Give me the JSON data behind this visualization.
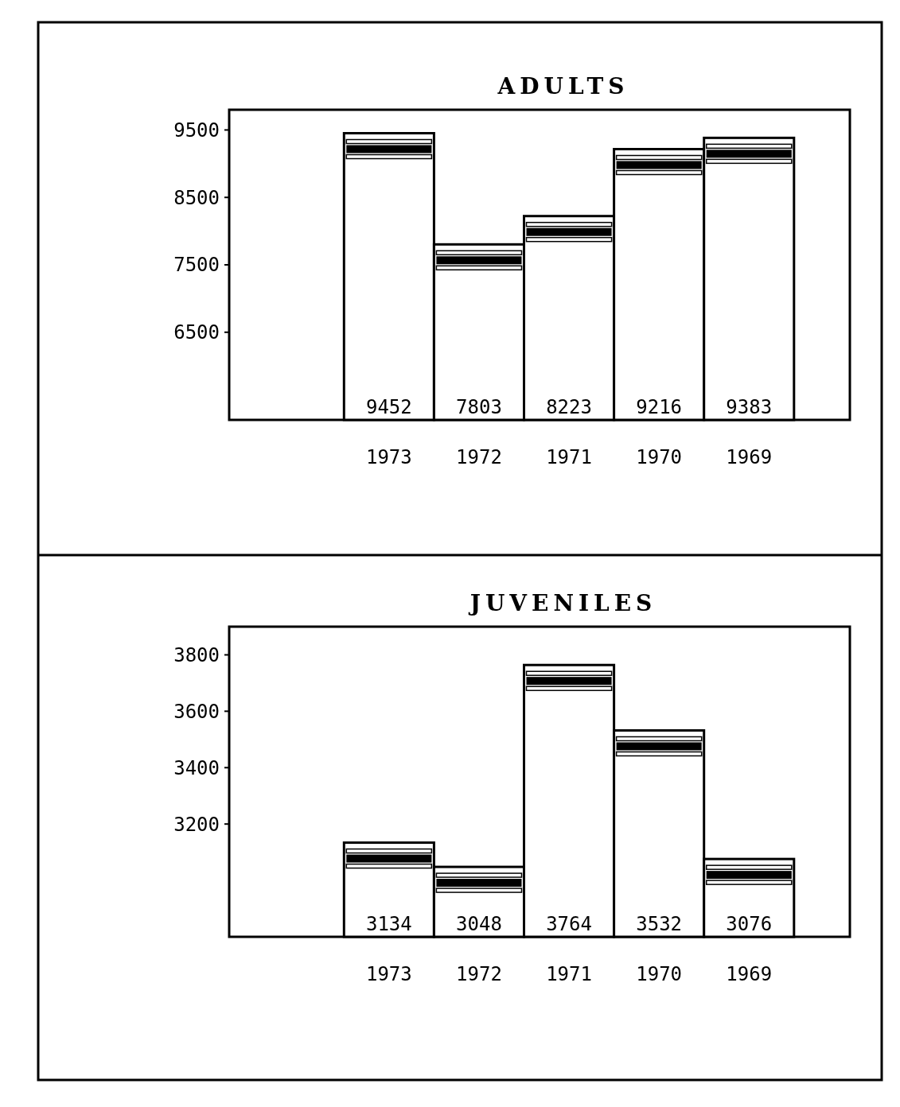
{
  "chart_data": [
    {
      "type": "bar",
      "title": "ADULTS",
      "categories": [
        "1973",
        "1972",
        "1971",
        "1970",
        "1969"
      ],
      "values": [
        9452,
        7803,
        8223,
        9216,
        9383
      ],
      "color": "#ffffff",
      "ylim": [
        5200,
        9800
      ],
      "yticks": [
        6500,
        7500,
        8500,
        9500
      ],
      "data_labels": true
    },
    {
      "type": "bar",
      "title": "JUVENILES",
      "categories": [
        "1973",
        "1972",
        "1971",
        "1970",
        "1969"
      ],
      "values": [
        3134,
        3048,
        3764,
        3532,
        3076
      ],
      "color": "#ffffff",
      "ylim": [
        2800,
        3900
      ],
      "yticks": [
        3200,
        3400,
        3600,
        3800
      ],
      "data_labels": true
    }
  ]
}
